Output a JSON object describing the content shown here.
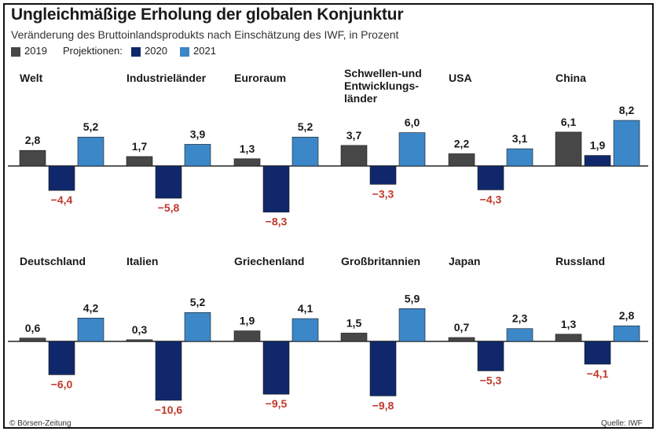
{
  "title": "Ungleichmäßige Erholung der globalen Konjunktur",
  "subtitle": "Veränderung des Bruttoinlandsprodukts nach Einschätzung des IWF, in Prozent",
  "legend": {
    "series_2019": "2019",
    "projections_label": "Projektionen:",
    "series_2020": "2020",
    "series_2021": "2021"
  },
  "colors": {
    "2019": "#474747",
    "2020": "#10286b",
    "2021": "#3c87c8",
    "negative_label": "#c0392b",
    "positive_label": "#1a1a1a"
  },
  "source_credit": "© Börsen-Zeitung",
  "source": "Quelle: IWF",
  "chart_data": {
    "type": "bar",
    "series_names": [
      "2019",
      "2020",
      "2021"
    ],
    "y_unit": "Prozent",
    "grid": false,
    "legend_position": "top-left",
    "panels": [
      {
        "name": "Welt",
        "values": [
          2.8,
          -4.4,
          5.2
        ]
      },
      {
        "name": "Industrieländer",
        "values": [
          1.7,
          -5.8,
          3.9
        ]
      },
      {
        "name": "Euroraum",
        "values": [
          1.3,
          -8.3,
          5.2
        ]
      },
      {
        "name": "Schwellen- und Entwicklungsländer",
        "name_lines": [
          "Schwellen-und",
          "Entwicklungs-",
          "länder"
        ],
        "values": [
          3.7,
          -3.3,
          6.0
        ]
      },
      {
        "name": "USA",
        "values": [
          2.2,
          -4.3,
          3.1
        ]
      },
      {
        "name": "China",
        "values": [
          6.1,
          1.9,
          8.2
        ]
      },
      {
        "name": "Deutschland",
        "values": [
          0.6,
          -6.0,
          4.2
        ]
      },
      {
        "name": "Italien",
        "values": [
          0.3,
          -10.6,
          5.2
        ]
      },
      {
        "name": "Griechenland",
        "values": [
          1.9,
          -9.5,
          4.1
        ]
      },
      {
        "name": "Großbritannien",
        "values": [
          1.5,
          -9.8,
          5.9
        ]
      },
      {
        "name": "Japan",
        "values": [
          0.7,
          -5.3,
          2.3
        ]
      },
      {
        "name": "Russland",
        "values": [
          1.3,
          -4.1,
          2.8
        ]
      }
    ]
  }
}
